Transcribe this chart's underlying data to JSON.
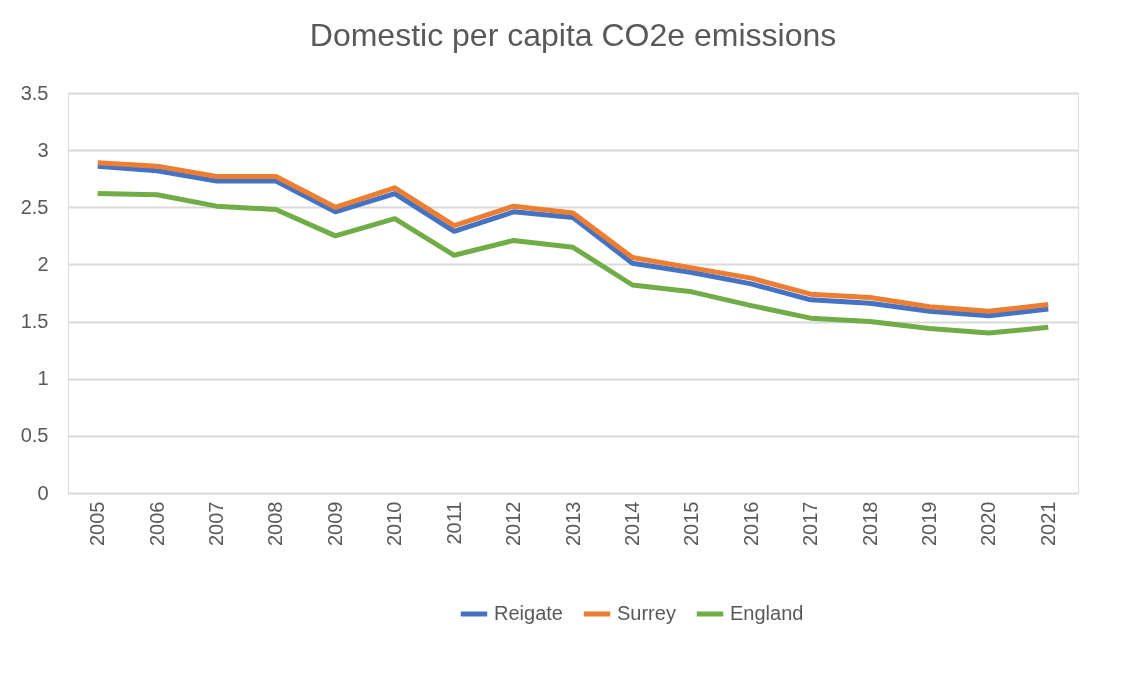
{
  "chart_data": {
    "type": "line",
    "title": "Domestic per capita CO2e emissions",
    "categories": [
      "2005",
      "2006",
      "2007",
      "2008",
      "2009",
      "2010",
      "2011",
      "2012",
      "2013",
      "2014",
      "2015",
      "2016",
      "2017",
      "2018",
      "2019",
      "2020",
      "2021"
    ],
    "series": [
      {
        "name": "Reigate",
        "color": "#4472c4",
        "values": [
          2.86,
          2.82,
          2.73,
          2.73,
          2.46,
          2.62,
          2.29,
          2.46,
          2.41,
          2.01,
          1.93,
          1.83,
          1.69,
          1.66,
          1.59,
          1.55,
          1.61
        ]
      },
      {
        "name": "Surrey",
        "color": "#ed7d31",
        "values": [
          2.89,
          2.86,
          2.77,
          2.77,
          2.5,
          2.67,
          2.34,
          2.51,
          2.45,
          2.06,
          1.97,
          1.88,
          1.74,
          1.71,
          1.63,
          1.59,
          1.65
        ]
      },
      {
        "name": "England",
        "color": "#70ad47",
        "values": [
          2.62,
          2.61,
          2.51,
          2.48,
          2.25,
          2.4,
          2.08,
          2.21,
          2.15,
          1.82,
          1.76,
          1.64,
          1.53,
          1.5,
          1.44,
          1.4,
          1.45
        ]
      }
    ],
    "ylim": [
      0,
      3.5
    ],
    "yticks": [
      0,
      0.5,
      1,
      1.5,
      2,
      2.5,
      3,
      3.5
    ],
    "grid": "y",
    "legend": "bottom",
    "marker": "none",
    "line_style": "solid"
  }
}
